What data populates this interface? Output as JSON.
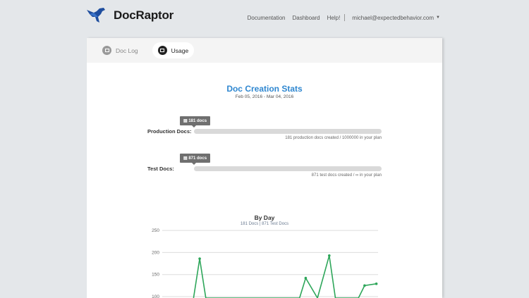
{
  "header": {
    "brand": "DocRaptor",
    "nav": [
      "Documentation",
      "Dashboard",
      "Help!"
    ],
    "user": "michael@expectedbehavior.com"
  },
  "tabs": [
    {
      "label": "Doc Log",
      "icon": "list-icon",
      "active": false
    },
    {
      "label": "Usage",
      "icon": "chart-icon",
      "active": true
    }
  ],
  "stats": {
    "title": "Doc Creation Stats",
    "date_range": "Feb 05, 2016 - Mar 04, 2016",
    "production": {
      "label": "Production Docs:",
      "tooltip": "181 docs",
      "note": "181 production docs created / 1000000 in your plan",
      "used": 181,
      "limit": 1000000
    },
    "test": {
      "label": "Test Docs:",
      "tooltip": "871 docs",
      "note": "871 test docs created / ∞ in your plan",
      "used": 871
    }
  },
  "colors": {
    "accent": "#2f87d0",
    "line": "#2ea65a"
  },
  "chart_data": {
    "type": "line",
    "title": "By Day",
    "subtitle": "181 Docs | 871 Test Docs",
    "y_ticks": [
      100,
      150,
      200,
      250
    ],
    "ylim_visible": [
      100,
      250
    ],
    "grid": true,
    "series": [
      {
        "values": [
          null,
          null,
          null,
          186,
          null,
          null,
          null,
          null,
          null,
          null,
          null,
          null,
          142,
          null,
          193,
          null,
          null,
          125,
          129
        ]
      }
    ]
  }
}
